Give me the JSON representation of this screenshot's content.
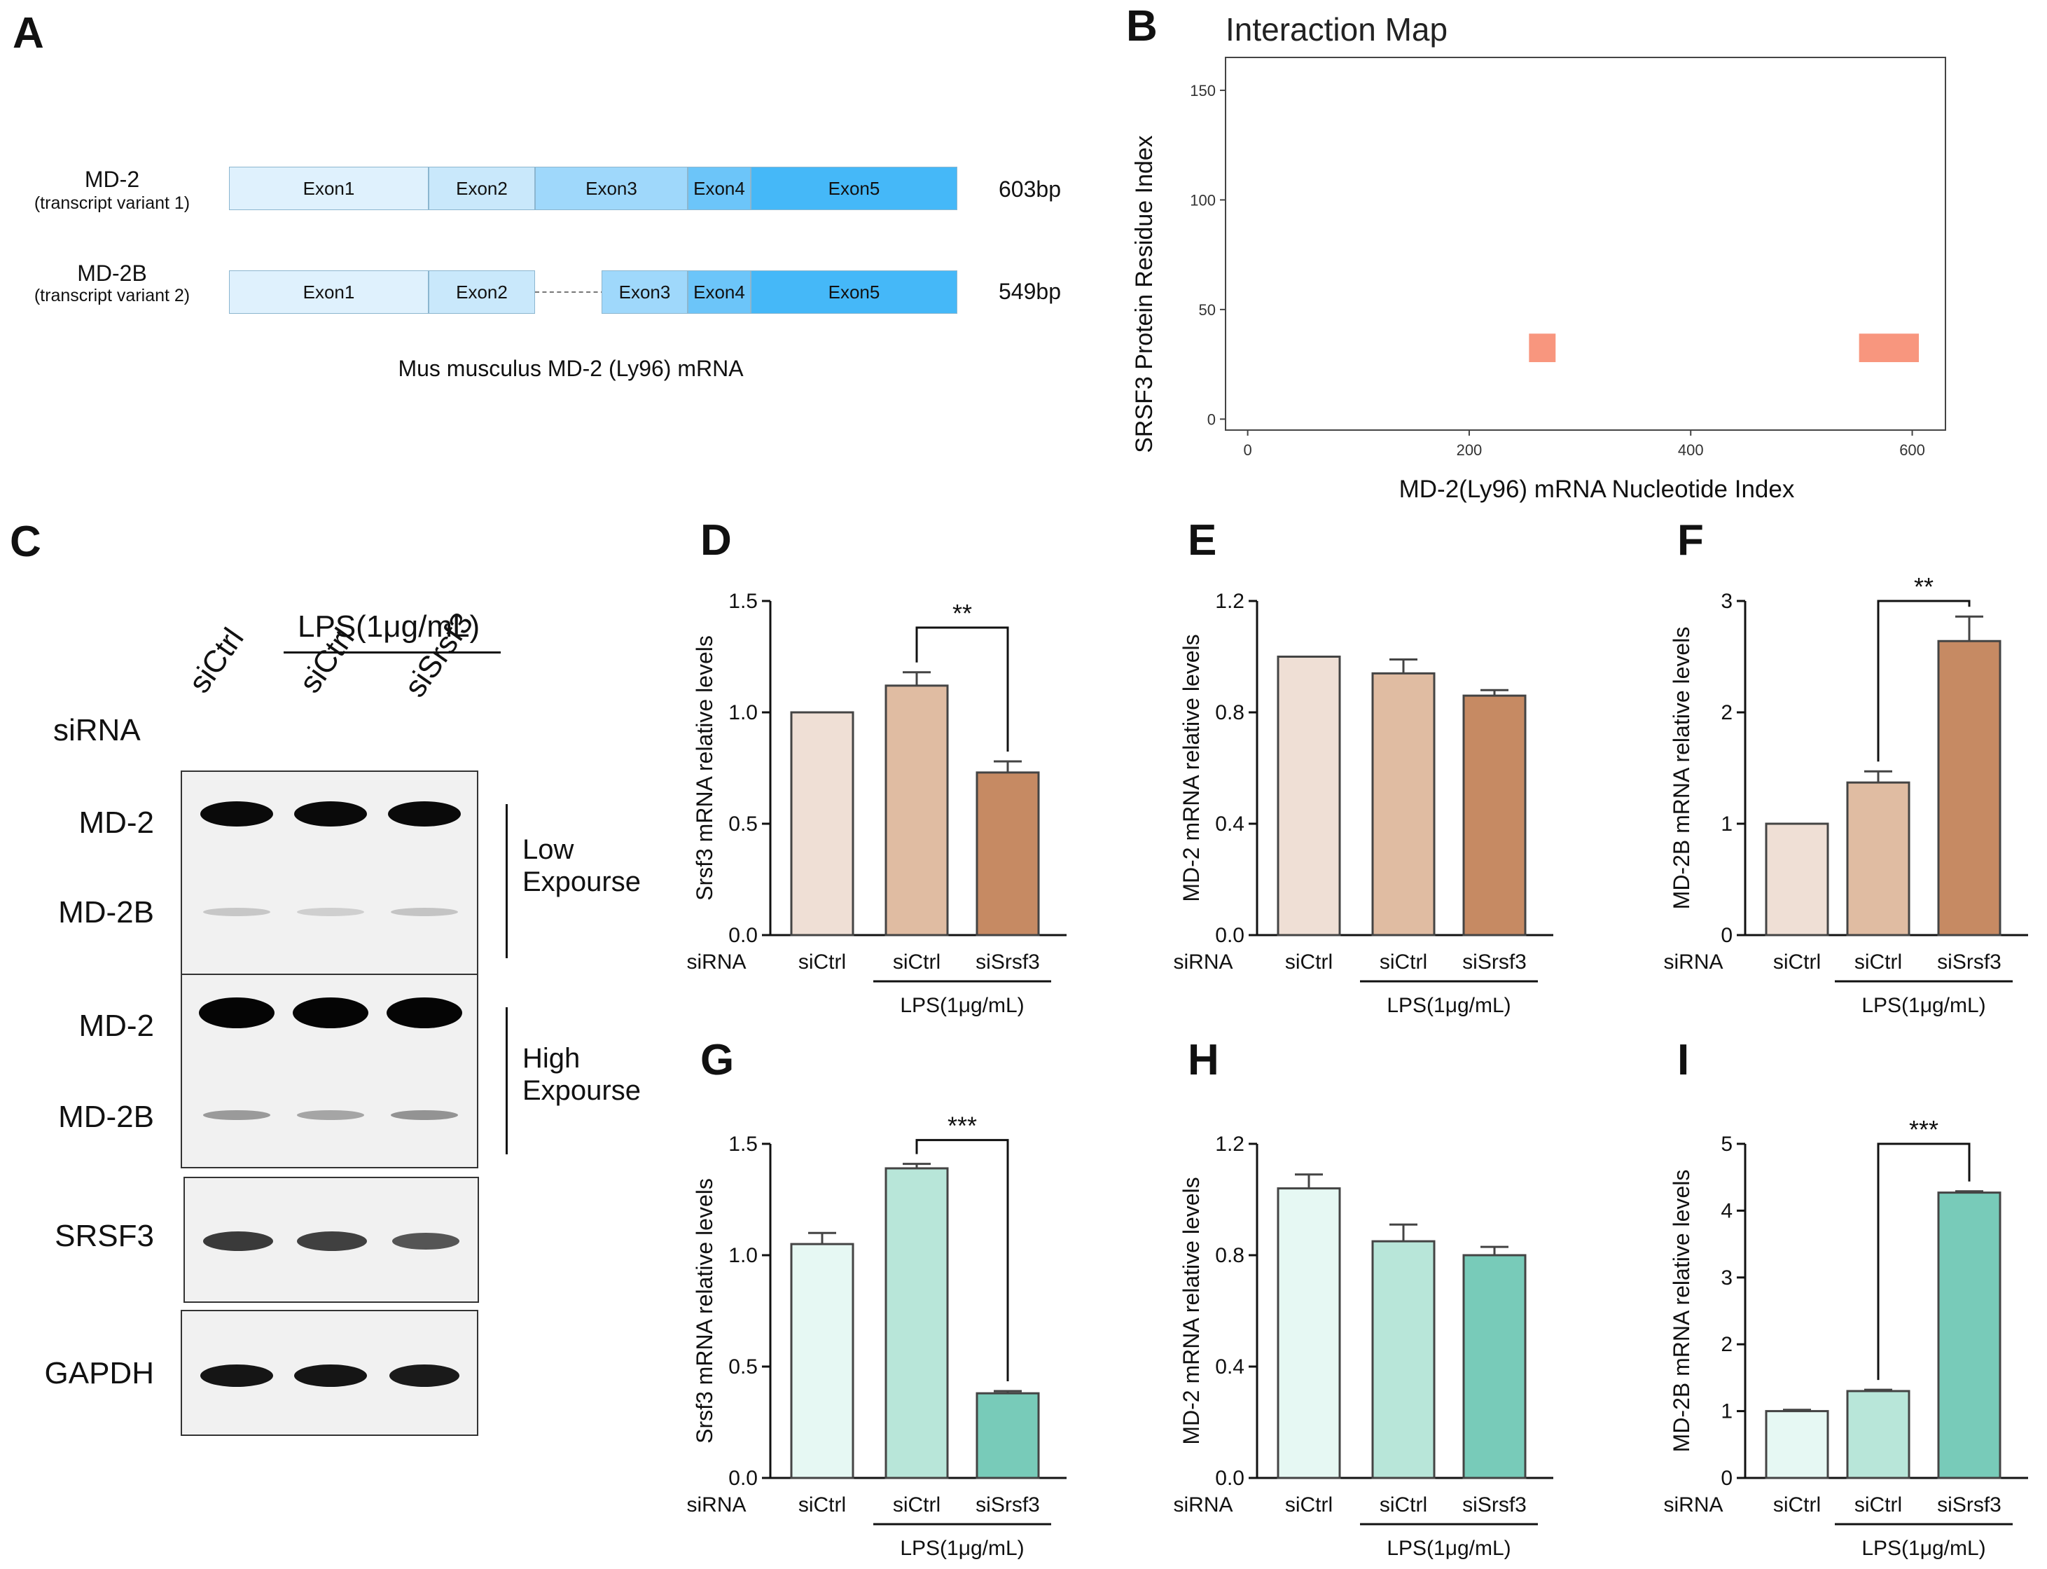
{
  "panels": {
    "A": "A",
    "B": "B",
    "C": "C",
    "D": "D",
    "E": "E",
    "F": "F",
    "G": "G",
    "H": "H",
    "I": "I"
  },
  "panel_a": {
    "title": "Mus musculus MD-2 (Ly96) mRNA",
    "transcripts": [
      {
        "name": "MD-2",
        "variant": "(transcript variant 1)",
        "length": "603bp",
        "exons": [
          "Exon1",
          "Exon2",
          "Exon3",
          "Exon4",
          "Exon5"
        ]
      },
      {
        "name": "MD-2B",
        "variant": "(transcript variant 2)",
        "length": "549bp",
        "exons": [
          "Exon1",
          "Exon2",
          "Exon3",
          "Exon4",
          "Exon5"
        ]
      }
    ],
    "exon_colors": [
      "#dff1fd",
      "#c9e8fb",
      "#9fd8fb",
      "#6cc5f9",
      "#45b8f8"
    ]
  },
  "chart_data": [
    {
      "panel": "B",
      "type": "heatmap",
      "title": "Interaction Map",
      "xlabel": "MD-2(Ly96) mRNA Nucleotide Index",
      "ylabel": "SRSF3 Protein Residue Index",
      "xlim": [
        -20,
        630
      ],
      "ylim": [
        -5,
        165
      ],
      "xticks": [
        "0",
        "200",
        "400",
        "600"
      ],
      "yticks": [
        "0",
        "50",
        "100",
        "150"
      ],
      "tick_values_x": [
        0,
        200,
        400,
        600
      ],
      "tick_values_y": [
        0,
        50,
        100,
        150
      ],
      "regions": [
        {
          "x": [
            254,
            278
          ],
          "y": [
            26,
            39
          ]
        },
        {
          "x": [
            552,
            606
          ],
          "y": [
            26,
            39
          ]
        }
      ],
      "color": "#f8967e"
    },
    {
      "panel": "D",
      "type": "bar",
      "ylabel": "Srsf3 mRNA relative levels",
      "categories": [
        "siCtrl",
        "siCtrl",
        "siSrsf3"
      ],
      "values": [
        1.0,
        1.12,
        0.73
      ],
      "errors": [
        0,
        0.06,
        0.05
      ],
      "ylim": [
        0,
        1.5
      ],
      "yticks": [
        "0.0",
        "0.5",
        "1.0",
        "1.5"
      ],
      "row_label": "siRNA",
      "group_label": "LPS(1μg/mL)",
      "significance": {
        "between": [
          1,
          2
        ],
        "label": "**"
      },
      "colors": [
        "#efdfd5",
        "#e0bca2",
        "#c68a63"
      ]
    },
    {
      "panel": "E",
      "type": "bar",
      "ylabel": "MD-2 mRNA relative levels",
      "categories": [
        "siCtrl",
        "siCtrl",
        "siSrsf3"
      ],
      "values": [
        1.0,
        0.94,
        0.86
      ],
      "errors": [
        0,
        0.05,
        0.02
      ],
      "ylim": [
        0,
        1.2
      ],
      "yticks": [
        "0.0",
        "0.4",
        "0.8",
        "1.2"
      ],
      "row_label": "siRNA",
      "group_label": "LPS(1μg/mL)",
      "colors": [
        "#efdfd5",
        "#e0bca2",
        "#c68a63"
      ]
    },
    {
      "panel": "F",
      "type": "bar",
      "ylabel": "MD-2B mRNA relative levels",
      "categories": [
        "siCtrl",
        "siCtrl",
        "siSrsf3"
      ],
      "values": [
        1.0,
        1.37,
        2.64
      ],
      "errors": [
        0,
        0.1,
        0.22
      ],
      "ylim": [
        0,
        3
      ],
      "yticks": [
        "0",
        "1",
        "2",
        "3"
      ],
      "row_label": "siRNA",
      "group_label": "LPS(1μg/mL)",
      "significance": {
        "between": [
          1,
          2
        ],
        "label": "**"
      },
      "colors": [
        "#efdfd5",
        "#e0bca2",
        "#c68a63"
      ]
    },
    {
      "panel": "G",
      "type": "bar",
      "ylabel": "Srsf3 mRNA relative levels",
      "categories": [
        "siCtrl",
        "siCtrl",
        "siSrsf3"
      ],
      "values": [
        1.05,
        1.39,
        0.38
      ],
      "errors": [
        0.05,
        0.02,
        0.01
      ],
      "ylim": [
        0,
        1.5
      ],
      "yticks": [
        "0.0",
        "0.5",
        "1.0",
        "1.5"
      ],
      "row_label": "siRNA",
      "group_label": "LPS(1μg/mL)",
      "significance": {
        "between": [
          1,
          2
        ],
        "label": "***"
      },
      "colors": [
        "#e6f8f3",
        "#b8e6d9",
        "#78cbb9"
      ]
    },
    {
      "panel": "H",
      "type": "bar",
      "ylabel": "MD-2 mRNA relative levels",
      "categories": [
        "siCtrl",
        "siCtrl",
        "siSrsf3"
      ],
      "values": [
        1.04,
        0.85,
        0.8
      ],
      "errors": [
        0.05,
        0.06,
        0.03
      ],
      "ylim": [
        0,
        1.2
      ],
      "yticks": [
        "0.0",
        "0.4",
        "0.8",
        "1.2"
      ],
      "row_label": "siRNA",
      "group_label": "LPS(1μg/mL)",
      "colors": [
        "#e6f8f3",
        "#b8e6d9",
        "#78cbb9"
      ]
    },
    {
      "panel": "I",
      "type": "bar",
      "ylabel": "MD-2B mRNA relative levels",
      "categories": [
        "siCtrl",
        "siCtrl",
        "siSrsf3"
      ],
      "values": [
        1.0,
        1.3,
        4.27
      ],
      "errors": [
        0.02,
        0.02,
        0.02
      ],
      "ylim": [
        0,
        5
      ],
      "yticks": [
        "0",
        "1",
        "2",
        "3",
        "4",
        "5"
      ],
      "row_label": "siRNA",
      "group_label": "LPS(1μg/mL)",
      "significance": {
        "between": [
          1,
          2
        ],
        "label": "***"
      },
      "colors": [
        "#e6f8f3",
        "#b8e6d9",
        "#78cbb9"
      ]
    }
  ],
  "panel_c": {
    "lps_label": "LPS(1μg/mL)",
    "sirna_label": "siRNA",
    "lanes": [
      "siCtrl",
      "siCtrl",
      "siSrsf3"
    ],
    "blots": [
      {
        "labels": [
          "MD-2",
          "MD-2B"
        ],
        "exposure": "Low\nExpourse"
      },
      {
        "labels": [
          "MD-2",
          "MD-2B"
        ],
        "exposure": "High\nExpourse"
      },
      {
        "labels": [
          "SRSF3"
        ]
      },
      {
        "labels": [
          "GAPDH"
        ]
      }
    ]
  }
}
